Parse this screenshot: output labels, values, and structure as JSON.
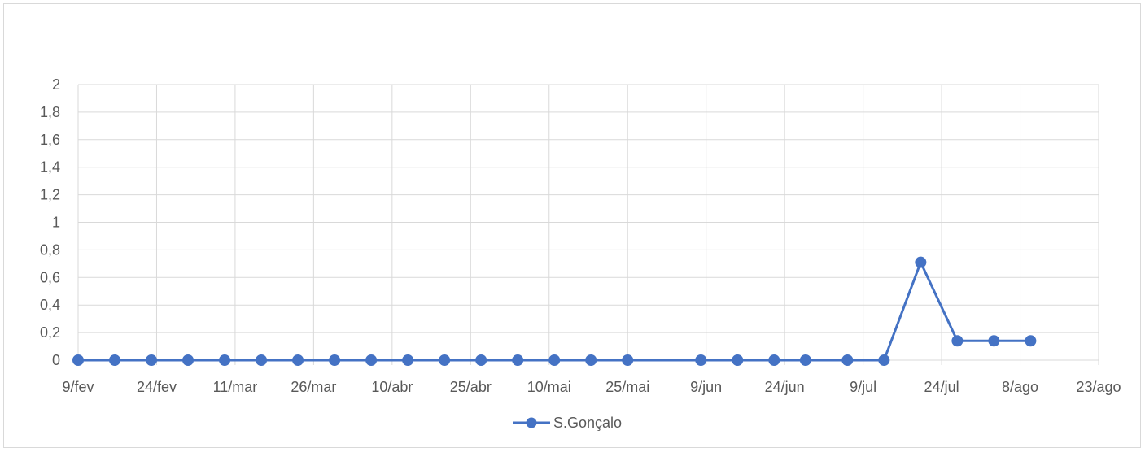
{
  "chart_data": {
    "type": "line",
    "title": "",
    "xlabel": "",
    "ylabel": "",
    "x_tick_labels": [
      "9/fev",
      "24/fev",
      "11/mar",
      "26/mar",
      "10/abr",
      "25/abr",
      "10/mai",
      "25/mai",
      "9/jun",
      "24/jun",
      "9/jul",
      "24/jul",
      "8/ago",
      "23/ago"
    ],
    "y_tick_labels": [
      "0",
      "0,2",
      "0,4",
      "0,6",
      "0,8",
      "1",
      "1,2",
      "1,4",
      "1,6",
      "1,8",
      "2"
    ],
    "ylim": [
      0,
      2
    ],
    "xlim": [
      "2021-02-09",
      "2021-08-23"
    ],
    "grid": true,
    "legend_position": "bottom",
    "series": [
      {
        "name": "S.Gonçalo",
        "color": "#4472c4",
        "marker": "circle",
        "points": [
          {
            "x": "2021-02-09",
            "y": 0
          },
          {
            "x": "2021-02-16",
            "y": 0
          },
          {
            "x": "2021-02-23",
            "y": 0
          },
          {
            "x": "2021-03-02",
            "y": 0
          },
          {
            "x": "2021-03-09",
            "y": 0
          },
          {
            "x": "2021-03-16",
            "y": 0
          },
          {
            "x": "2021-03-23",
            "y": 0
          },
          {
            "x": "2021-03-30",
            "y": 0
          },
          {
            "x": "2021-04-06",
            "y": 0
          },
          {
            "x": "2021-04-13",
            "y": 0
          },
          {
            "x": "2021-04-20",
            "y": 0
          },
          {
            "x": "2021-04-27",
            "y": 0
          },
          {
            "x": "2021-05-04",
            "y": 0
          },
          {
            "x": "2021-05-11",
            "y": 0
          },
          {
            "x": "2021-05-18",
            "y": 0
          },
          {
            "x": "2021-05-25",
            "y": 0
          },
          {
            "x": "2021-06-08",
            "y": 0
          },
          {
            "x": "2021-06-15",
            "y": 0
          },
          {
            "x": "2021-06-22",
            "y": 0
          },
          {
            "x": "2021-06-28",
            "y": 0
          },
          {
            "x": "2021-07-06",
            "y": 0
          },
          {
            "x": "2021-07-13",
            "y": 0
          },
          {
            "x": "2021-07-20",
            "y": 0.71
          },
          {
            "x": "2021-07-27",
            "y": 0.14
          },
          {
            "x": "2021-08-03",
            "y": 0.14
          },
          {
            "x": "2021-08-10",
            "y": 0.14
          }
        ]
      }
    ]
  }
}
